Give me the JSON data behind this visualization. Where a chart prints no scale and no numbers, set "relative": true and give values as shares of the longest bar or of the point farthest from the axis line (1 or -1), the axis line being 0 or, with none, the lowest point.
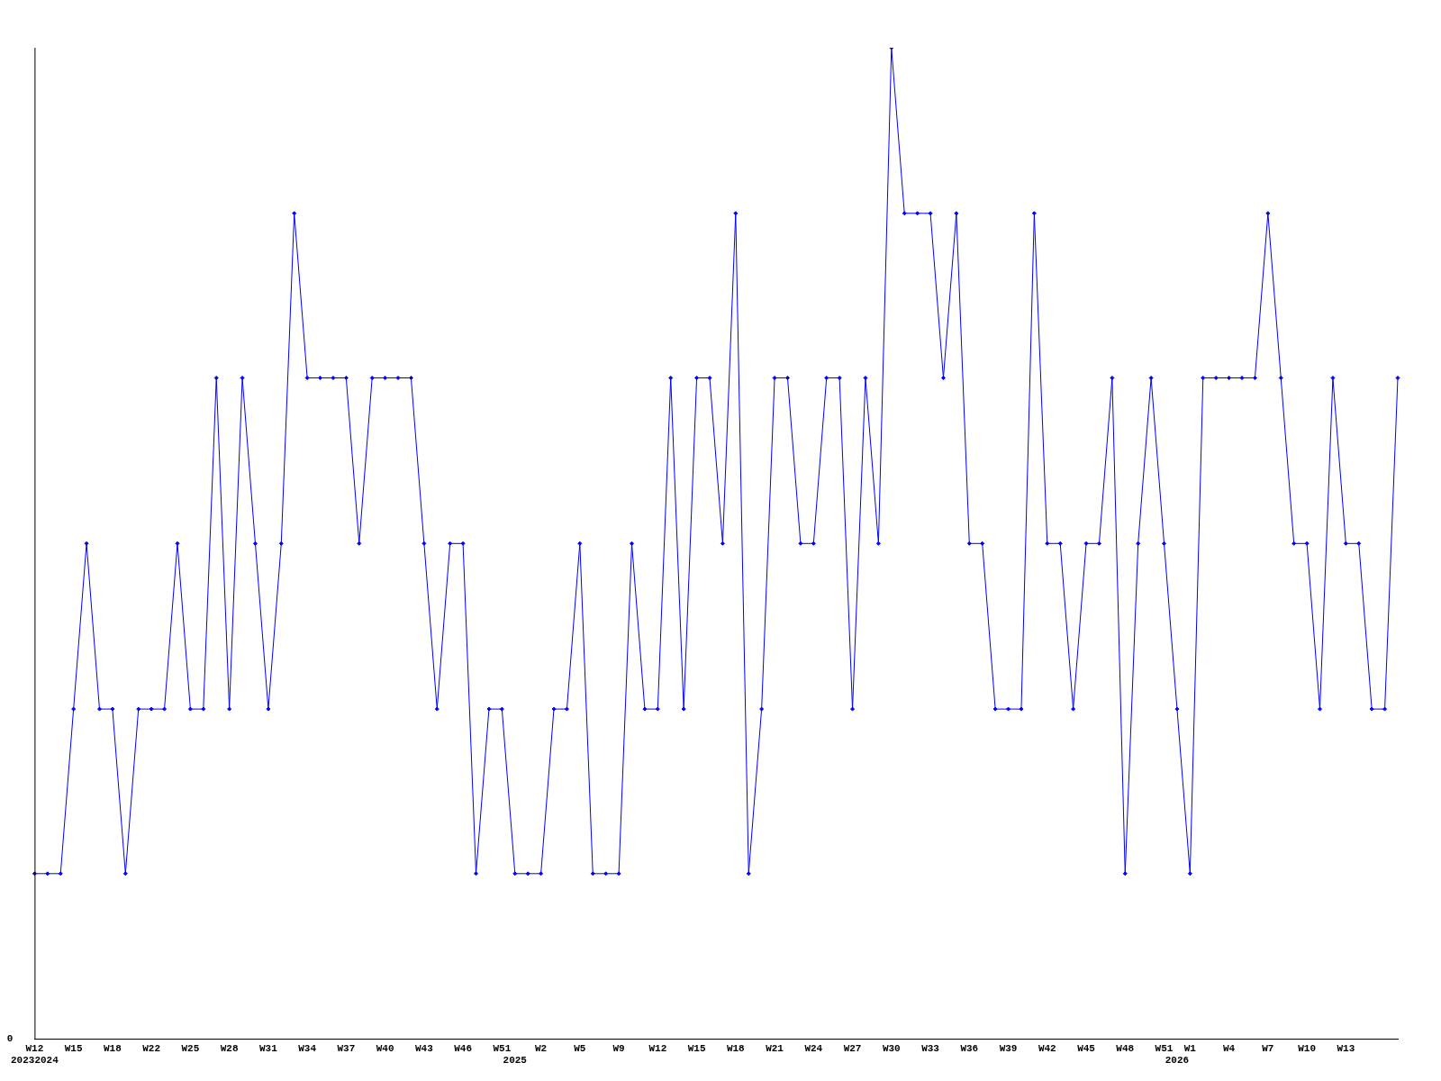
{
  "chart_data": {
    "type": "line",
    "relative": true,
    "annotations": [
      "0"
    ],
    "marker": "diamond",
    "grid": false,
    "legend": false,
    "categories": [
      "W12\n20232024",
      null,
      null,
      "W15",
      null,
      null,
      "W18",
      null,
      null,
      "W22",
      null,
      null,
      "W25",
      null,
      null,
      "W28",
      null,
      null,
      "W31",
      null,
      null,
      "W34",
      null,
      null,
      "W37",
      null,
      null,
      "W40",
      null,
      null,
      "W43",
      null,
      null,
      "W46",
      null,
      null,
      "W51",
      "\n2025",
      null,
      "W2",
      null,
      null,
      "W5",
      null,
      null,
      "W9",
      null,
      null,
      "W12",
      null,
      null,
      "W15",
      null,
      null,
      "W18",
      null,
      null,
      "W21",
      null,
      null,
      "W24",
      null,
      null,
      "W27",
      null,
      null,
      "W30",
      null,
      null,
      "W33",
      null,
      null,
      "W36",
      null,
      null,
      "W39",
      null,
      null,
      "W42",
      null,
      null,
      "W45",
      null,
      null,
      "W48",
      null,
      null,
      "W51",
      "\n2026",
      "W1",
      null,
      null,
      "W4",
      null,
      null,
      "W7",
      null,
      null,
      "W10",
      null,
      null,
      "W13",
      null,
      null,
      null,
      null
    ],
    "series": [
      {
        "color": "#0000ff",
        "values": [
          0.167,
          0.167,
          0.167,
          0.333,
          0.5,
          0.333,
          0.333,
          0.167,
          0.333,
          0.333,
          0.333,
          0.5,
          0.333,
          0.333,
          0.667,
          0.333,
          0.667,
          0.5,
          0.333,
          0.5,
          0.833,
          0.667,
          0.667,
          0.667,
          0.667,
          0.5,
          0.667,
          0.667,
          0.667,
          0.667,
          0.5,
          0.333,
          0.5,
          0.5,
          0.167,
          0.333,
          0.333,
          0.167,
          0.167,
          0.167,
          0.333,
          0.333,
          0.5,
          0.167,
          0.167,
          0.167,
          0.5,
          0.333,
          0.333,
          0.667,
          0.333,
          0.667,
          0.667,
          0.5,
          0.833,
          0.167,
          0.333,
          0.667,
          0.667,
          0.5,
          0.5,
          0.667,
          0.667,
          0.333,
          0.667,
          0.5,
          1,
          0.833,
          0.833,
          0.833,
          0.667,
          0.833,
          0.5,
          0.5,
          0.333,
          0.333,
          0.333,
          0.833,
          0.5,
          0.5,
          0.333,
          0.5,
          0.5,
          0.667,
          0.167,
          0.5,
          0.667,
          0.5,
          0.333,
          0.167,
          0.667,
          0.667,
          0.667,
          0.667,
          0.667,
          0.833,
          0.667,
          0.5,
          0.5,
          0.333,
          0.667,
          0.5,
          0.5,
          0.333,
          0.333,
          0.667
        ]
      }
    ]
  }
}
